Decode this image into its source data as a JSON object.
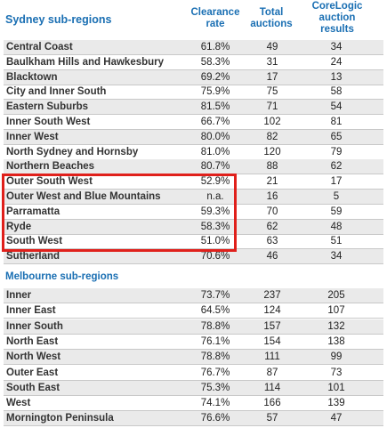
{
  "sydney": {
    "title": "Sydney sub-regions",
    "headers": {
      "clearance": "Clearance\nrate",
      "total": "Total\nauctions",
      "corelogic": "CoreLogic\nauction\nresults"
    },
    "rows": [
      {
        "name": "Central Coast",
        "rate": "61.8%",
        "total": "49",
        "cl": "34"
      },
      {
        "name": "Baulkham Hills and Hawkesbury",
        "rate": "58.3%",
        "total": "31",
        "cl": "24"
      },
      {
        "name": "Blacktown",
        "rate": "69.2%",
        "total": "17",
        "cl": "13"
      },
      {
        "name": "City and Inner South",
        "rate": "75.9%",
        "total": "75",
        "cl": "58"
      },
      {
        "name": "Eastern Suburbs",
        "rate": "81.5%",
        "total": "71",
        "cl": "54"
      },
      {
        "name": "Inner South West",
        "rate": "66.7%",
        "total": "102",
        "cl": "81"
      },
      {
        "name": "Inner West",
        "rate": "80.0%",
        "total": "82",
        "cl": "65"
      },
      {
        "name": "North Sydney and Hornsby",
        "rate": "81.0%",
        "total": "120",
        "cl": "79"
      },
      {
        "name": "Northern Beaches",
        "rate": "80.7%",
        "total": "88",
        "cl": "62"
      },
      {
        "name": "Outer South West",
        "rate": "52.9%",
        "total": "21",
        "cl": "17"
      },
      {
        "name": "Outer West and Blue Mountains",
        "rate": "n.a.",
        "total": "16",
        "cl": "5"
      },
      {
        "name": "Parramatta",
        "rate": "59.3%",
        "total": "70",
        "cl": "59"
      },
      {
        "name": "Ryde",
        "rate": "58.3%",
        "total": "62",
        "cl": "48"
      },
      {
        "name": "South West",
        "rate": "51.0%",
        "total": "63",
        "cl": "51"
      },
      {
        "name": "Sutherland",
        "rate": "70.6%",
        "total": "46",
        "cl": "34"
      }
    ]
  },
  "melbourne": {
    "title": "Melbourne sub-regions",
    "rows": [
      {
        "name": "Inner",
        "rate": "73.7%",
        "total": "237",
        "cl": "205"
      },
      {
        "name": "Inner East",
        "rate": "64.5%",
        "total": "124",
        "cl": "107"
      },
      {
        "name": "Inner South",
        "rate": "78.8%",
        "total": "157",
        "cl": "132"
      },
      {
        "name": "North East",
        "rate": "76.1%",
        "total": "154",
        "cl": "138"
      },
      {
        "name": "North West",
        "rate": "78.8%",
        "total": "111",
        "cl": "99"
      },
      {
        "name": "Outer East",
        "rate": "76.7%",
        "total": "87",
        "cl": "73"
      },
      {
        "name": "South East",
        "rate": "75.3%",
        "total": "114",
        "cl": "101"
      },
      {
        "name": "West",
        "rate": "74.1%",
        "total": "166",
        "cl": "139"
      },
      {
        "name": "Mornington Peninsula",
        "rate": "76.6%",
        "total": "57",
        "cl": "47"
      }
    ]
  },
  "colors": {
    "heading": "#1a6fb3",
    "highlight": "#e0201b",
    "stripe": "#eaeaea"
  }
}
